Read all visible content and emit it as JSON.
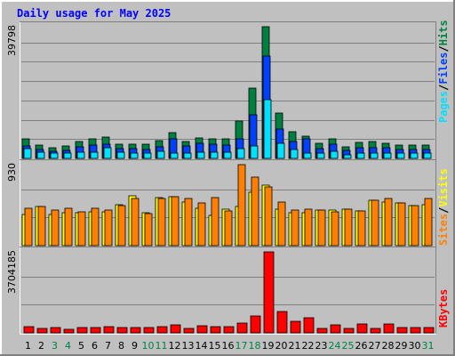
{
  "title": "Daily usage for May 2025",
  "colors": {
    "background": "#c0c0c0",
    "hits": "#008040",
    "files": "#0040ff",
    "pages": "#00e0ff",
    "visits": "#ffff00",
    "sites": "#ff8000",
    "kbytes": "#ff0000",
    "title": "#0000ff",
    "weekday_label": "#000000",
    "weekend_label": "#008040",
    "legend_separator": "#000000"
  },
  "legends": {
    "top": [
      "Pages",
      "/",
      "Files",
      "/",
      "Hits"
    ],
    "middle": [
      "Sites",
      "/",
      "Visits"
    ],
    "bottom": [
      "KBytes"
    ]
  },
  "chart_data": [
    {
      "type": "bar",
      "ylabel": "39798",
      "ylim": [
        0,
        39798
      ],
      "categories": [
        "1",
        "2",
        "3",
        "4",
        "5",
        "6",
        "7",
        "8",
        "9",
        "10",
        "11",
        "12",
        "13",
        "14",
        "15",
        "16",
        "17",
        "18",
        "19",
        "20",
        "21",
        "22",
        "23",
        "24",
        "25",
        "26",
        "27",
        "28",
        "29",
        "30",
        "31"
      ],
      "weekend_days": [
        "3",
        "4",
        "10",
        "11",
        "17",
        "18",
        "24",
        "25",
        "31"
      ],
      "legend": [
        "Pages",
        "Files",
        "Hits"
      ],
      "series": [
        {
          "name": "Hits",
          "values": [
            5800,
            4000,
            3200,
            3800,
            5200,
            5800,
            6400,
            4400,
            4400,
            4200,
            5400,
            7800,
            5200,
            6300,
            6000,
            5800,
            11300,
            21300,
            39798,
            13600,
            8200,
            6800,
            4700,
            5800,
            3400,
            4900,
            5100,
            4700,
            4000,
            4100,
            4100
          ]
        },
        {
          "name": "Files",
          "values": [
            3700,
            2700,
            2100,
            2400,
            3400,
            4100,
            4400,
            2900,
            2900,
            2800,
            3600,
            5800,
            3700,
            4700,
            4200,
            4000,
            6000,
            13200,
            31000,
            8800,
            5200,
            5900,
            3000,
            4200,
            2300,
            3100,
            3300,
            3100,
            2800,
            2800,
            2800
          ]
        },
        {
          "name": "Pages",
          "values": [
            3000,
            2000,
            1500,
            1700,
            1800,
            2000,
            3200,
            1800,
            1700,
            1500,
            2100,
            1700,
            1700,
            1800,
            1900,
            1900,
            3000,
            3800,
            17700,
            4500,
            2600,
            1600,
            1600,
            2100,
            1000,
            1700,
            1600,
            1500,
            1500,
            1500,
            1500
          ]
        }
      ]
    },
    {
      "type": "bar",
      "ylabel": "930",
      "ylim": [
        0,
        930
      ],
      "categories": [
        "1",
        "2",
        "3",
        "4",
        "5",
        "6",
        "7",
        "8",
        "9",
        "10",
        "11",
        "12",
        "13",
        "14",
        "15",
        "16",
        "17",
        "18",
        "19",
        "20",
        "21",
        "22",
        "23",
        "24",
        "25",
        "26",
        "27",
        "28",
        "29",
        "30",
        "31"
      ],
      "weekend_days": [
        "3",
        "4",
        "10",
        "11",
        "17",
        "18",
        "24",
        "25",
        "31"
      ],
      "legend": [
        "Sites",
        "Visits"
      ],
      "series": [
        {
          "name": "Visits",
          "values": [
            360,
            450,
            360,
            380,
            380,
            390,
            390,
            470,
            570,
            380,
            550,
            560,
            500,
            430,
            350,
            420,
            450,
            610,
            700,
            420,
            380,
            380,
            410,
            410,
            420,
            400,
            520,
            500,
            490,
            460,
            470
          ]
        },
        {
          "name": "Sites",
          "values": [
            430,
            450,
            410,
            430,
            390,
            430,
            410,
            460,
            540,
            370,
            540,
            560,
            540,
            490,
            550,
            400,
            930,
            790,
            670,
            500,
            410,
            420,
            410,
            390,
            420,
            400,
            520,
            540,
            490,
            460,
            540
          ]
        }
      ]
    },
    {
      "type": "bar",
      "ylabel": "3704185",
      "ylim": [
        0,
        3704185
      ],
      "categories": [
        "1",
        "2",
        "3",
        "4",
        "5",
        "6",
        "7",
        "8",
        "9",
        "10",
        "11",
        "12",
        "13",
        "14",
        "15",
        "16",
        "17",
        "18",
        "19",
        "20",
        "21",
        "22",
        "23",
        "24",
        "25",
        "26",
        "27",
        "28",
        "29",
        "30",
        "31"
      ],
      "weekend_days": [
        "3",
        "4",
        "10",
        "11",
        "17",
        "18",
        "24",
        "25",
        "31"
      ],
      "legend": [
        "KBytes"
      ],
      "series": [
        {
          "name": "KBytes",
          "values": [
            300000,
            200000,
            250000,
            150000,
            230000,
            260000,
            300000,
            230000,
            230000,
            240000,
            270000,
            360000,
            200000,
            320000,
            300000,
            300000,
            440000,
            760000,
            3704185,
            970000,
            520000,
            710000,
            220000,
            370000,
            220000,
            390000,
            220000,
            390000,
            230000,
            240000,
            230000
          ]
        }
      ]
    }
  ]
}
